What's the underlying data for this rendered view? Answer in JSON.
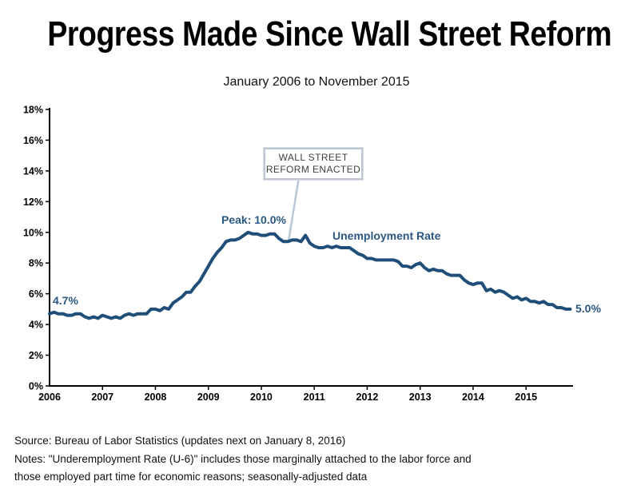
{
  "header": {
    "title": "Progress Made Since Wall Street Reform",
    "subtitle": "January 2006 to November 2015"
  },
  "annotations": {
    "start_label": "4.7%",
    "peak_label": "Peak: 10.0%",
    "series_label": "Unemployment Rate",
    "end_label": "5.0%",
    "callout_line1": "WALL STREET",
    "callout_line2": "REFORM ENACTED"
  },
  "footer": {
    "source": "Source: Bureau of Labor Statistics (updates next on January 8, 2016)",
    "notes_line1": "Notes: \"Underemployment Rate (U-6)\" includes those marginally attached to the labor force and",
    "notes_line2": "those employed part time for economic reasons; seasonally-adjusted data"
  },
  "colors": {
    "line": "#1F4E79",
    "label_blue": "#2A5783",
    "callout_border": "#B9C7D9",
    "axis": "#000000"
  },
  "chart_data": {
    "type": "line",
    "title": "Progress Made Since Wall Street Reform",
    "subtitle": "January 2006 to November 2015",
    "series_name": "Unemployment Rate",
    "x_start": "2006-01",
    "x_end": "2015-11",
    "x_tick_labels": [
      "2006",
      "2007",
      "2008",
      "2009",
      "2010",
      "2011",
      "2012",
      "2013",
      "2014",
      "2015"
    ],
    "y_tick_labels": [
      "0%",
      "2%",
      "4%",
      "6%",
      "8%",
      "10%",
      "12%",
      "14%",
      "16%",
      "18%"
    ],
    "ylim": [
      0,
      18
    ],
    "grid": false,
    "legend": "inline-label",
    "callout_month_index": 54,
    "values": [
      4.7,
      4.8,
      4.7,
      4.7,
      4.6,
      4.6,
      4.7,
      4.7,
      4.5,
      4.4,
      4.5,
      4.4,
      4.6,
      4.5,
      4.4,
      4.5,
      4.4,
      4.6,
      4.7,
      4.6,
      4.7,
      4.7,
      4.7,
      5.0,
      5.0,
      4.9,
      5.1,
      5.0,
      5.4,
      5.6,
      5.8,
      6.1,
      6.1,
      6.5,
      6.8,
      7.3,
      7.8,
      8.3,
      8.7,
      9.0,
      9.4,
      9.5,
      9.5,
      9.6,
      9.8,
      10.0,
      9.9,
      9.9,
      9.8,
      9.8,
      9.9,
      9.9,
      9.6,
      9.4,
      9.4,
      9.5,
      9.5,
      9.4,
      9.8,
      9.3,
      9.1,
      9.0,
      9.0,
      9.1,
      9.0,
      9.1,
      9.0,
      9.0,
      9.0,
      8.8,
      8.6,
      8.5,
      8.3,
      8.3,
      8.2,
      8.2,
      8.2,
      8.2,
      8.2,
      8.1,
      7.8,
      7.8,
      7.7,
      7.9,
      8.0,
      7.7,
      7.5,
      7.6,
      7.5,
      7.5,
      7.3,
      7.2,
      7.2,
      7.2,
      6.9,
      6.7,
      6.6,
      6.7,
      6.7,
      6.2,
      6.3,
      6.1,
      6.2,
      6.1,
      5.9,
      5.7,
      5.8,
      5.6,
      5.7,
      5.5,
      5.5,
      5.4,
      5.5,
      5.3,
      5.3,
      5.1,
      5.1,
      5.0,
      5.0
    ]
  }
}
